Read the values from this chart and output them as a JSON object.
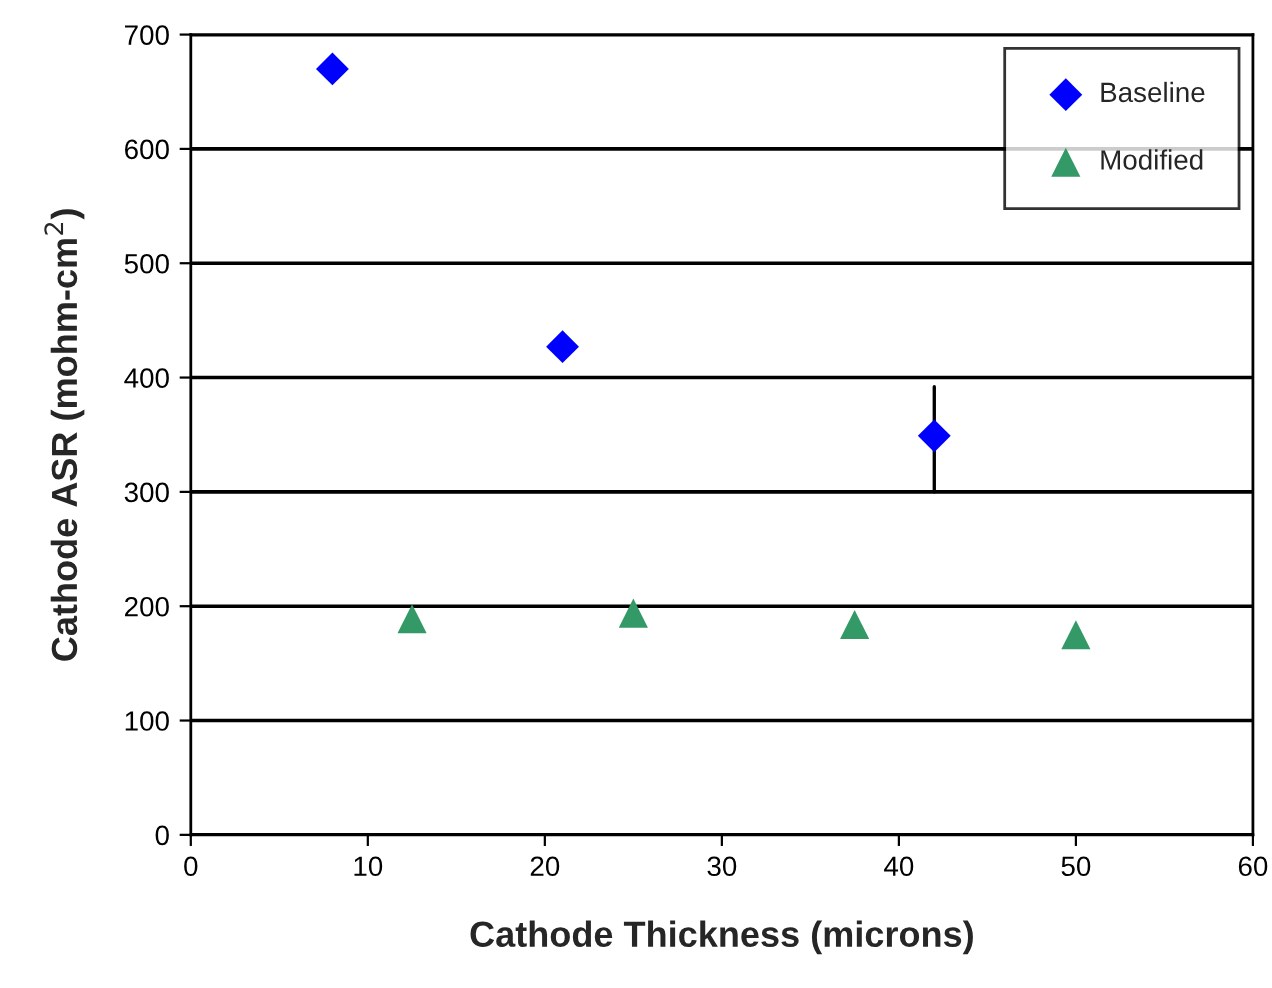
{
  "chart_data": {
    "type": "scatter",
    "xlabel": "Cathode Thickness (microns)",
    "ylabel": "Cathode ASR (mohm-cm$^{2}$)",
    "series": [
      {
        "name": "Baseline",
        "color": "#0000ff",
        "marker": "diamond",
        "x": [
          8,
          21,
          42
        ],
        "values": [
          670,
          427,
          349
        ],
        "errors": [
          null,
          null,
          [
            300,
            392
          ]
        ]
      },
      {
        "name": "Modified",
        "color": "#339966",
        "marker": "triangle",
        "x": [
          12.5,
          25,
          37.5,
          50
        ],
        "values": [
          189,
          194,
          184,
          175
        ]
      }
    ],
    "xlim": [
      0,
      60
    ],
    "xticks": [
      0,
      10,
      20,
      30,
      40,
      50,
      60
    ],
    "ylim": [
      0,
      700
    ],
    "yticks": [
      0,
      100,
      200,
      300,
      400,
      500,
      600,
      700
    ],
    "grid": "y",
    "legend": "top right"
  }
}
